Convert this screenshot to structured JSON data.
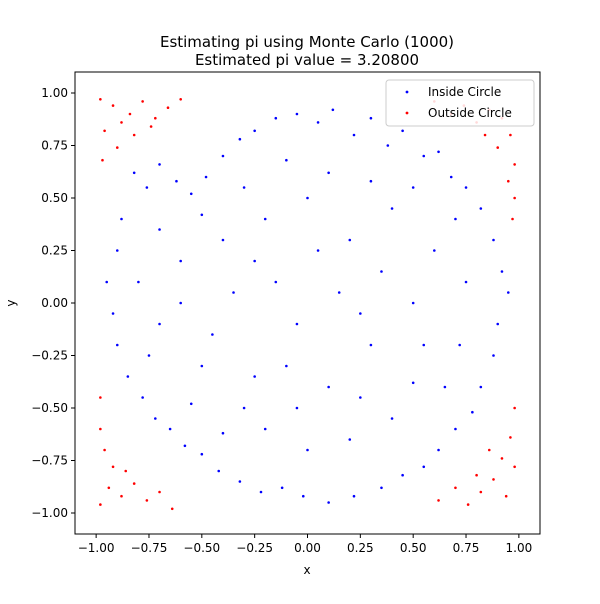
{
  "chart_data": {
    "type": "scatter",
    "title": "Estimating pi using Monte Carlo (1000)",
    "subtitle": "Estimated pi value = 3.20800",
    "xlabel": "x",
    "ylabel": "y",
    "xlim": [
      -1.1,
      1.1
    ],
    "ylim": [
      -1.1,
      1.1
    ],
    "xticks": [
      -1.0,
      -0.75,
      -0.5,
      -0.25,
      0.0,
      0.25,
      0.5,
      0.75,
      1.0
    ],
    "xtick_labels": [
      "−1.00",
      "−0.75",
      "−0.50",
      "−0.25",
      "0.00",
      "0.25",
      "0.50",
      "0.75",
      "1.00"
    ],
    "yticks": [
      -1.0,
      -0.75,
      -0.5,
      -0.25,
      0.0,
      0.25,
      0.5,
      0.75,
      1.0
    ],
    "ytick_labels": [
      "−1.00",
      "−0.75",
      "−0.50",
      "−0.25",
      "0.00",
      "0.25",
      "0.50",
      "0.75",
      "1.00"
    ],
    "grid": false,
    "legend": "top-right",
    "series": [
      {
        "name": "Inside Circle",
        "color": "#0000ff",
        "points": [
          [
            -0.82,
            0.62
          ],
          [
            -0.76,
            0.55
          ],
          [
            -0.7,
            0.66
          ],
          [
            -0.62,
            0.58
          ],
          [
            -0.55,
            0.52
          ],
          [
            -0.48,
            0.6
          ],
          [
            -0.4,
            0.7
          ],
          [
            -0.32,
            0.78
          ],
          [
            -0.25,
            0.82
          ],
          [
            -0.15,
            0.88
          ],
          [
            -0.05,
            0.9
          ],
          [
            0.05,
            0.86
          ],
          [
            0.12,
            0.92
          ],
          [
            0.22,
            0.8
          ],
          [
            0.3,
            0.88
          ],
          [
            0.38,
            0.75
          ],
          [
            0.45,
            0.82
          ],
          [
            0.55,
            0.7
          ],
          [
            0.62,
            0.72
          ],
          [
            0.68,
            0.6
          ],
          [
            0.75,
            0.55
          ],
          [
            0.82,
            0.45
          ],
          [
            0.88,
            0.3
          ],
          [
            0.92,
            0.15
          ],
          [
            0.95,
            0.05
          ],
          [
            0.9,
            -0.1
          ],
          [
            0.88,
            -0.25
          ],
          [
            0.82,
            -0.4
          ],
          [
            0.78,
            -0.52
          ],
          [
            0.7,
            -0.6
          ],
          [
            0.62,
            -0.7
          ],
          [
            0.55,
            -0.78
          ],
          [
            0.45,
            -0.82
          ],
          [
            0.35,
            -0.88
          ],
          [
            0.22,
            -0.92
          ],
          [
            0.1,
            -0.95
          ],
          [
            -0.02,
            -0.92
          ],
          [
            -0.12,
            -0.88
          ],
          [
            -0.22,
            -0.9
          ],
          [
            -0.32,
            -0.85
          ],
          [
            -0.42,
            -0.8
          ],
          [
            -0.5,
            -0.72
          ],
          [
            -0.58,
            -0.68
          ],
          [
            -0.65,
            -0.6
          ],
          [
            -0.72,
            -0.55
          ],
          [
            -0.78,
            -0.45
          ],
          [
            -0.85,
            -0.35
          ],
          [
            -0.9,
            -0.2
          ],
          [
            -0.92,
            -0.05
          ],
          [
            -0.95,
            0.1
          ],
          [
            -0.9,
            0.25
          ],
          [
            -0.88,
            0.4
          ],
          [
            -0.6,
            0.2
          ],
          [
            -0.4,
            0.3
          ],
          [
            -0.2,
            0.4
          ],
          [
            0.0,
            0.5
          ],
          [
            0.2,
            0.3
          ],
          [
            0.4,
            0.45
          ],
          [
            0.6,
            0.25
          ],
          [
            0.5,
            0.0
          ],
          [
            0.3,
            -0.2
          ],
          [
            0.1,
            -0.4
          ],
          [
            -0.1,
            -0.3
          ],
          [
            -0.3,
            -0.5
          ],
          [
            -0.5,
            -0.3
          ],
          [
            -0.7,
            -0.1
          ],
          [
            -0.6,
            0.0
          ],
          [
            -0.35,
            0.05
          ],
          [
            -0.15,
            0.1
          ],
          [
            0.15,
            0.05
          ],
          [
            0.35,
            0.15
          ],
          [
            0.55,
            -0.2
          ],
          [
            0.65,
            -0.4
          ],
          [
            0.4,
            -0.55
          ],
          [
            0.2,
            -0.65
          ],
          [
            0.0,
            -0.7
          ],
          [
            -0.2,
            -0.6
          ],
          [
            -0.4,
            -0.62
          ],
          [
            -0.55,
            -0.48
          ],
          [
            -0.75,
            -0.25
          ],
          [
            -0.8,
            0.1
          ],
          [
            -0.7,
            0.35
          ],
          [
            -0.5,
            0.42
          ],
          [
            -0.3,
            0.55
          ],
          [
            -0.1,
            0.68
          ],
          [
            0.1,
            0.62
          ],
          [
            0.3,
            0.58
          ],
          [
            0.5,
            0.55
          ],
          [
            0.7,
            0.4
          ],
          [
            0.75,
            0.1
          ],
          [
            0.72,
            -0.2
          ],
          [
            0.5,
            -0.38
          ],
          [
            0.25,
            -0.45
          ],
          [
            -0.05,
            -0.5
          ],
          [
            -0.25,
            -0.35
          ],
          [
            -0.45,
            -0.15
          ],
          [
            -0.25,
            0.2
          ],
          [
            0.05,
            0.25
          ],
          [
            0.25,
            -0.05
          ],
          [
            -0.05,
            -0.1
          ]
        ]
      },
      {
        "name": "Outside Circle",
        "color": "#ff0000",
        "points": [
          [
            -0.98,
            0.97
          ],
          [
            -0.92,
            0.94
          ],
          [
            -0.88,
            0.86
          ],
          [
            -0.96,
            0.82
          ],
          [
            -0.84,
            0.9
          ],
          [
            -0.78,
            0.96
          ],
          [
            -0.72,
            0.88
          ],
          [
            -0.66,
            0.93
          ],
          [
            -0.6,
            0.97
          ],
          [
            -0.9,
            0.74
          ],
          [
            -0.97,
            0.68
          ],
          [
            -0.82,
            0.8
          ],
          [
            -0.74,
            0.84
          ],
          [
            0.6,
            0.96
          ],
          [
            0.68,
            0.9
          ],
          [
            0.74,
            0.94
          ],
          [
            0.8,
            0.86
          ],
          [
            0.86,
            0.92
          ],
          [
            0.92,
            0.88
          ],
          [
            0.96,
            0.8
          ],
          [
            0.9,
            0.74
          ],
          [
            0.98,
            0.66
          ],
          [
            0.84,
            0.8
          ],
          [
            0.95,
            0.58
          ],
          [
            0.98,
            0.5
          ],
          [
            -0.98,
            -0.96
          ],
          [
            -0.94,
            -0.88
          ],
          [
            -0.88,
            -0.92
          ],
          [
            -0.82,
            -0.86
          ],
          [
            -0.76,
            -0.94
          ],
          [
            -0.7,
            -0.9
          ],
          [
            -0.64,
            -0.98
          ],
          [
            -0.92,
            -0.78
          ],
          [
            -0.96,
            -0.7
          ],
          [
            -0.86,
            -0.8
          ],
          [
            -0.98,
            -0.6
          ],
          [
            0.62,
            -0.94
          ],
          [
            0.7,
            -0.88
          ],
          [
            0.76,
            -0.96
          ],
          [
            0.82,
            -0.9
          ],
          [
            0.88,
            -0.84
          ],
          [
            0.94,
            -0.92
          ],
          [
            0.98,
            -0.78
          ],
          [
            0.92,
            -0.74
          ],
          [
            0.86,
            -0.7
          ],
          [
            0.96,
            -0.64
          ],
          [
            0.8,
            -0.82
          ],
          [
            0.98,
            -0.5
          ],
          [
            -0.98,
            -0.45
          ],
          [
            0.97,
            0.4
          ]
        ]
      }
    ]
  }
}
